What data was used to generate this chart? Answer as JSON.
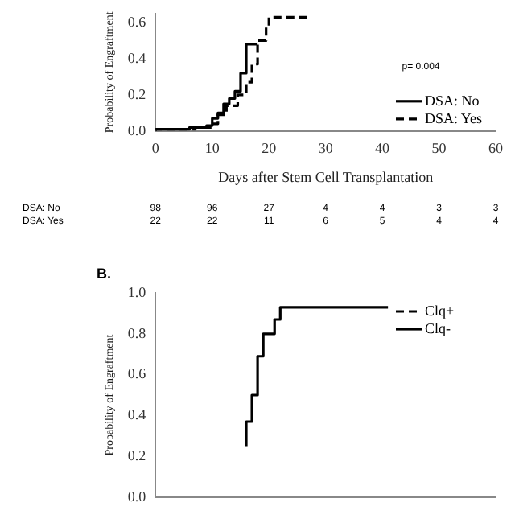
{
  "chart_data": [
    {
      "type": "step",
      "xlabel": "Days after Stem Cell Transplantation",
      "ylabel": "Probability of Engraftment",
      "xlim": [
        0,
        60
      ],
      "xticks": [
        0,
        10,
        20,
        30,
        40,
        50,
        60
      ],
      "ylim": [
        0,
        0.65
      ],
      "yticks": [
        {
          "value": 0,
          "label": "0.0"
        },
        {
          "value": 0.2,
          "label": "0.2"
        },
        {
          "value": 0.4,
          "label": "0.4"
        },
        {
          "value": 0.6,
          "label": "0.6"
        }
      ],
      "legend": "bottom right",
      "grid": false,
      "marker": "none",
      "series": [
        {
          "name": "DSA: No",
          "color": "#000000",
          "line_style": "solid",
          "x": [
            0,
            6,
            9,
            10,
            11,
            12,
            13,
            14,
            15,
            16,
            17,
            18
          ],
          "values": [
            0,
            0.01,
            0.02,
            0.03,
            0.07,
            0.1,
            0.15,
            0.18,
            0.22,
            0.32,
            0.48,
            0.48
          ]
        },
        {
          "name": "DSA: Yes",
          "color": "#000000",
          "line_style": "dashed",
          "x": [
            0,
            7,
            10,
            11,
            12.5,
            14.5,
            16,
            17,
            18,
            19.5,
            20,
            21,
            27
          ],
          "values": [
            0,
            0.01,
            0.02,
            0.04,
            0.09,
            0.14,
            0.2,
            0.27,
            0.37,
            0.5,
            0.58,
            0.63,
            0.63
          ]
        }
      ],
      "annotations": [
        "p= 0.004",
        "DSA: No\t98\t96\t27\t4\t4\t3\t3",
        "DSA: Yes\t22\t22\t11\t6\t5\t4\t4"
      ]
    },
    {
      "type": "step",
      "title": "B.",
      "ylabel": "Probability of Engraftment",
      "xlim": [
        0,
        60
      ],
      "ylim": [
        0,
        1
      ],
      "yticks": [
        {
          "value": 0,
          "label": "0.0"
        },
        {
          "value": 0.2,
          "label": "0.2"
        },
        {
          "value": 0.4,
          "label": "0.4"
        },
        {
          "value": 0.6,
          "label": "0.6"
        },
        {
          "value": 0.8,
          "label": "0.8"
        },
        {
          "value": 1,
          "label": "1.0"
        }
      ],
      "tick_labels": "y",
      "legend": "top right",
      "grid": false,
      "marker": "none",
      "series": [
        {
          "name": "Clq+",
          "color": "#000000",
          "line_style": "dashed"
        },
        {
          "name": "Clq-",
          "color": "#000000",
          "line_style": "solid",
          "x": [
            16,
            17,
            18,
            19,
            21,
            22,
            28,
            41
          ],
          "values": [
            0.25,
            0.37,
            0.5,
            0.69,
            0.8,
            0.87,
            0.93,
            0.93
          ]
        }
      ]
    }
  ]
}
